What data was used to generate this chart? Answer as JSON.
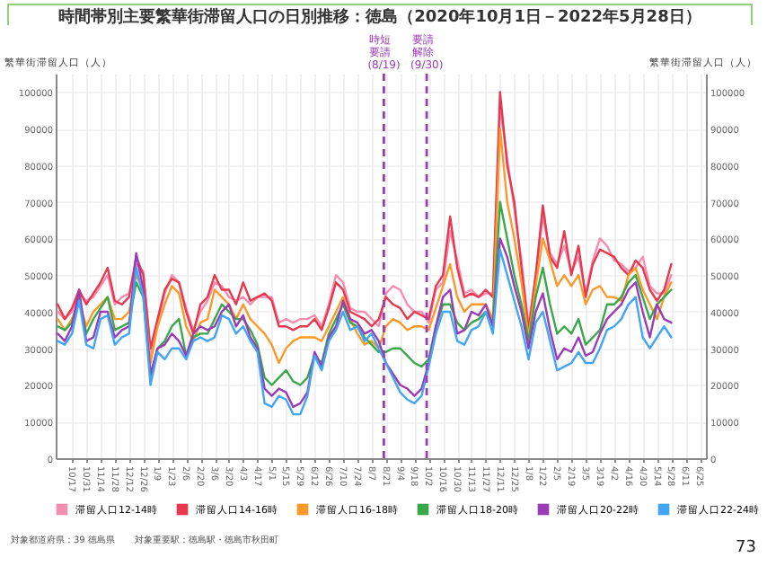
{
  "chart_data": {
    "type": "line",
    "title": "時間帯別主要繁華街滞留人口の日別推移：徳島（2020年10月1日－2022年5月28日）",
    "ylabel": "繁華街滞留人口（人）",
    "y2label": "繁華街滞留人口（人）",
    "annotations": [
      "対象都道府県：39 徳島県",
      "対象重要駅：徳島駅・徳島市秋田町",
      "73"
    ],
    "x": [
      "2020-10-03",
      "2020-10-10",
      "2020-10-17",
      "2020-10-24",
      "2020-10-31",
      "2020-11-07",
      "2020-11-14",
      "2020-11-21",
      "2020-11-28",
      "2020-12-05",
      "2020-12-12",
      "2020-12-19",
      "2020-12-26",
      "2021-01-02",
      "2021-01-09",
      "2021-01-16",
      "2021-01-23",
      "2021-01-30",
      "2021-02-06",
      "2021-02-13",
      "2021-02-20",
      "2021-02-27",
      "2021-03-06",
      "2021-03-13",
      "2021-03-20",
      "2021-03-27",
      "2021-04-03",
      "2021-04-10",
      "2021-04-17",
      "2021-04-24",
      "2021-05-01",
      "2021-05-08",
      "2021-05-15",
      "2021-05-22",
      "2021-05-29",
      "2021-06-05",
      "2021-06-12",
      "2021-06-19",
      "2021-06-26",
      "2021-07-03",
      "2021-07-10",
      "2021-07-17",
      "2021-07-24",
      "2021-07-31",
      "2021-08-07",
      "2021-08-14",
      "2021-08-21",
      "2021-08-28",
      "2021-09-04",
      "2021-09-11",
      "2021-09-18",
      "2021-09-25",
      "2021-10-02",
      "2021-10-09",
      "2021-10-16",
      "2021-10-23",
      "2021-10-30",
      "2021-11-06",
      "2021-11-13",
      "2021-11-20",
      "2021-11-27",
      "2021-12-04",
      "2021-12-11",
      "2021-12-18",
      "2021-12-25",
      "2022-01-01",
      "2022-01-08",
      "2022-01-15",
      "2022-01-22",
      "2022-01-29",
      "2022-02-05",
      "2022-02-12",
      "2022-02-19",
      "2022-02-26",
      "2022-03-05",
      "2022-03-12",
      "2022-03-19",
      "2022-03-26",
      "2022-04-02",
      "2022-04-09",
      "2022-04-16",
      "2022-04-23",
      "2022-04-30",
      "2022-05-07",
      "2022-05-14",
      "2022-05-21",
      "2022-05-28"
    ],
    "series": [
      {
        "name": "滞留人口12-14時",
        "color": "#f48fb1",
        "values": [
          40000,
          38000,
          40000,
          45000,
          43000,
          44000,
          47000,
          50000,
          42000,
          44000,
          45000,
          53000,
          51000,
          28000,
          37000,
          45000,
          50000,
          48000,
          41000,
          35000,
          40000,
          43000,
          48000,
          47000,
          44000,
          43000,
          44000,
          42000,
          44000,
          44000,
          44000,
          37000,
          38000,
          37000,
          38000,
          38000,
          39000,
          36000,
          42000,
          50000,
          48000,
          41000,
          40000,
          40000,
          38000,
          36000,
          45000,
          47000,
          46000,
          42000,
          40000,
          40000,
          37000,
          46000,
          48000,
          62000,
          54000,
          45000,
          46000,
          44000,
          45000,
          45000,
          96000,
          82000,
          68000,
          54000,
          36000,
          50000,
          66000,
          56000,
          53000,
          58000,
          51000,
          55000,
          45000,
          54000,
          60000,
          58000,
          54000,
          53000,
          51000,
          52000,
          55000,
          47000,
          45000,
          45000,
          50000
        ]
      },
      {
        "name": "滞留人口14-16時",
        "color": "#e8384f",
        "values": [
          42000,
          38000,
          41000,
          46000,
          42000,
          45000,
          48000,
          52000,
          43000,
          42000,
          44000,
          55000,
          50000,
          30000,
          38000,
          46000,
          49000,
          48000,
          40000,
          34000,
          42000,
          44000,
          50000,
          46000,
          46000,
          42000,
          48000,
          43000,
          44000,
          45000,
          43000,
          36000,
          36000,
          35000,
          36000,
          36000,
          38000,
          35000,
          41000,
          48000,
          46000,
          40000,
          39000,
          38000,
          36000,
          38000,
          44000,
          42000,
          41000,
          38000,
          40000,
          39000,
          38000,
          47000,
          50000,
          66000,
          52000,
          44000,
          45000,
          44000,
          46000,
          44000,
          100000,
          80000,
          70000,
          52000,
          35000,
          50000,
          69000,
          55000,
          52000,
          62000,
          50000,
          58000,
          44000,
          53000,
          57000,
          56000,
          55000,
          52000,
          50000,
          54000,
          52000,
          46000,
          43000,
          46000,
          53000
        ]
      },
      {
        "name": "滞留人口16-18時",
        "color": "#fb9a2b",
        "values": [
          38000,
          35000,
          38000,
          43000,
          36000,
          40000,
          42000,
          44000,
          38000,
          38000,
          40000,
          50000,
          46000,
          26000,
          36000,
          42000,
          47000,
          45000,
          36000,
          32000,
          37000,
          38000,
          46000,
          44000,
          42000,
          38000,
          42000,
          38000,
          36000,
          34000,
          31000,
          26000,
          30000,
          32000,
          33000,
          33000,
          33000,
          32000,
          36000,
          40000,
          44000,
          38000,
          34000,
          31000,
          32000,
          30000,
          36000,
          38000,
          37000,
          35000,
          36000,
          36000,
          35000,
          41000,
          47000,
          53000,
          44000,
          40000,
          42000,
          42000,
          42000,
          38000,
          90000,
          70000,
          60000,
          48000,
          33000,
          47000,
          60000,
          54000,
          47000,
          50000,
          47000,
          50000,
          42000,
          46000,
          47000,
          44000,
          44000,
          43000,
          50000,
          52000,
          46000,
          42000,
          38000,
          44000,
          48000
        ]
      },
      {
        "name": "滞留人口18-20時",
        "color": "#3aa84a",
        "values": [
          36000,
          35000,
          37000,
          44000,
          34000,
          38000,
          41000,
          44000,
          35000,
          36000,
          37000,
          48000,
          44000,
          22000,
          30000,
          32000,
          36000,
          38000,
          28000,
          33000,
          34000,
          34000,
          38000,
          42000,
          40000,
          38000,
          38000,
          35000,
          31000,
          22000,
          20000,
          22000,
          24000,
          21000,
          20000,
          22000,
          28000,
          26000,
          34000,
          38000,
          42000,
          37000,
          36000,
          33000,
          31000,
          29000,
          29000,
          30000,
          30000,
          28000,
          26000,
          25000,
          27000,
          36000,
          42000,
          42000,
          37000,
          35000,
          37000,
          38000,
          40000,
          37000,
          70000,
          60000,
          50000,
          42000,
          32000,
          44000,
          52000,
          42000,
          34000,
          36000,
          34000,
          38000,
          31000,
          33000,
          35000,
          42000,
          42000,
          44000,
          48000,
          50000,
          44000,
          38000,
          42000,
          44000,
          46000
        ]
      },
      {
        "name": "滞留人口20-22時",
        "color": "#9b3cb7",
        "values": [
          34000,
          32000,
          36000,
          46000,
          32000,
          33000,
          40000,
          40000,
          33000,
          35000,
          36000,
          56000,
          46000,
          23000,
          30000,
          31000,
          34000,
          32000,
          28000,
          34000,
          36000,
          35000,
          36000,
          40000,
          42000,
          36000,
          39000,
          33000,
          30000,
          19000,
          17000,
          19000,
          18000,
          14000,
          15000,
          18000,
          29000,
          25000,
          33000,
          36000,
          43000,
          38000,
          37000,
          34000,
          35000,
          32000,
          26000,
          23000,
          20000,
          19000,
          17000,
          19000,
          26000,
          36000,
          44000,
          46000,
          34000,
          35000,
          40000,
          39000,
          42000,
          36000,
          60000,
          55000,
          47000,
          40000,
          30000,
          40000,
          45000,
          35000,
          27000,
          30000,
          29000,
          33000,
          28000,
          29000,
          34000,
          38000,
          40000,
          42000,
          46000,
          48000,
          40000,
          33000,
          42000,
          38000,
          37000
        ]
      },
      {
        "name": "滞留人口22-24時",
        "color": "#42a5f5",
        "values": [
          32000,
          31000,
          34000,
          43000,
          31000,
          30000,
          38000,
          39000,
          31000,
          33000,
          34000,
          52000,
          44000,
          20000,
          29000,
          27000,
          30000,
          30000,
          27000,
          32000,
          33000,
          32000,
          33000,
          39000,
          38000,
          34000,
          36000,
          32000,
          29000,
          15000,
          14000,
          17000,
          16000,
          12000,
          12000,
          17000,
          28000,
          24000,
          32000,
          35000,
          40000,
          35000,
          36000,
          32000,
          34000,
          30000,
          26000,
          22000,
          18000,
          16000,
          15000,
          17000,
          25000,
          34000,
          40000,
          40000,
          32000,
          31000,
          35000,
          36000,
          40000,
          34000,
          57000,
          50000,
          43000,
          36000,
          27000,
          37000,
          40000,
          32000,
          24000,
          25000,
          26000,
          29000,
          26000,
          26000,
          30000,
          35000,
          36000,
          38000,
          42000,
          44000,
          33000,
          30000,
          33000,
          36000,
          33000
        ]
      }
    ],
    "xlim": [
      "2020-10-01",
      "2022-07-01"
    ],
    "xticks": [
      {
        "value": "2020-10-17",
        "label": "10/17"
      },
      {
        "value": "2020-10-31",
        "label": "10/31"
      },
      {
        "value": "2020-11-14",
        "label": "11/14"
      },
      {
        "value": "2020-11-28",
        "label": "11/28"
      },
      {
        "value": "2020-12-12",
        "label": "12/12"
      },
      {
        "value": "2020-12-26",
        "label": "12/26"
      },
      {
        "value": "2021-01-09",
        "label": "1/9"
      },
      {
        "value": "2021-01-23",
        "label": "1/23"
      },
      {
        "value": "2021-02-06",
        "label": "2/6"
      },
      {
        "value": "2021-02-20",
        "label": "2/20"
      },
      {
        "value": "2021-03-06",
        "label": "3/6"
      },
      {
        "value": "2021-03-20",
        "label": "3/20"
      },
      {
        "value": "2021-04-03",
        "label": "4/3"
      },
      {
        "value": "2021-04-17",
        "label": "4/17"
      },
      {
        "value": "2021-05-01",
        "label": "5/1"
      },
      {
        "value": "2021-05-15",
        "label": "5/15"
      },
      {
        "value": "2021-05-29",
        "label": "5/29"
      },
      {
        "value": "2021-06-12",
        "label": "6/12"
      },
      {
        "value": "2021-06-26",
        "label": "6/26"
      },
      {
        "value": "2021-07-10",
        "label": "7/10"
      },
      {
        "value": "2021-07-24",
        "label": "7/24"
      },
      {
        "value": "2021-08-07",
        "label": "8/7"
      },
      {
        "value": "2021-08-21",
        "label": "8/21"
      },
      {
        "value": "2021-09-04",
        "label": "9/4"
      },
      {
        "value": "2021-09-18",
        "label": "9/18"
      },
      {
        "value": "2021-10-02",
        "label": "10/2"
      },
      {
        "value": "2021-10-16",
        "label": "10/16"
      },
      {
        "value": "2021-10-30",
        "label": "10/30"
      },
      {
        "value": "2021-11-13",
        "label": "11/13"
      },
      {
        "value": "2021-11-27",
        "label": "11/27"
      },
      {
        "value": "2021-12-11",
        "label": "12/11"
      },
      {
        "value": "2021-12-25",
        "label": "12/25"
      },
      {
        "value": "2022-01-08",
        "label": "1/8"
      },
      {
        "value": "2022-01-22",
        "label": "1/22"
      },
      {
        "value": "2022-02-05",
        "label": "2/5"
      },
      {
        "value": "2022-02-19",
        "label": "2/19"
      },
      {
        "value": "2022-03-05",
        "label": "3/5"
      },
      {
        "value": "2022-03-19",
        "label": "3/19"
      },
      {
        "value": "2022-04-02",
        "label": "4/2"
      },
      {
        "value": "2022-04-16",
        "label": "4/16"
      },
      {
        "value": "2022-04-30",
        "label": "4/30"
      },
      {
        "value": "2022-05-14",
        "label": "5/14"
      },
      {
        "value": "2022-05-28",
        "label": "5/28"
      },
      {
        "value": "2022-06-11",
        "label": "6/11"
      },
      {
        "value": "2022-06-25",
        "label": "6/25"
      }
    ],
    "ylim": [
      0,
      105000
    ],
    "yticks": [
      0,
      10000,
      20000,
      30000,
      40000,
      50000,
      60000,
      70000,
      80000,
      90000,
      100000
    ],
    "y2lim": [
      0,
      105000
    ],
    "y2ticks": [
      0,
      10000,
      20000,
      30000,
      40000,
      50000,
      60000,
      70000,
      80000,
      90000,
      100000
    ],
    "ref_lines": [
      {
        "axis": "x",
        "value": "2021-08-19",
        "label": "時短要請(8/19)",
        "color": "#9b3cb7",
        "line_style": "dashed"
      },
      {
        "axis": "x",
        "value": "2021-09-30",
        "label": "要請解除(9/30)",
        "color": "#9b3cb7",
        "line_style": "dashed"
      }
    ],
    "grid": true,
    "legend": "bottom",
    "marker": "none",
    "line_style": "solid"
  }
}
